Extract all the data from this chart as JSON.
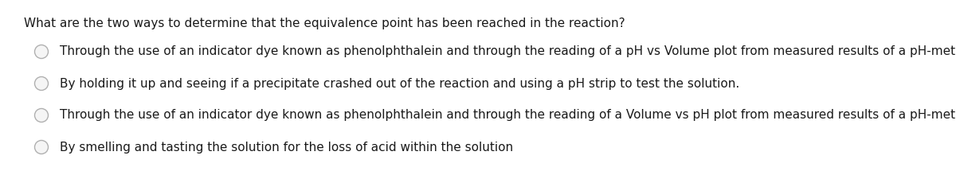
{
  "background_color": "#ffffff",
  "question": "What are the two ways to determine that the equivalence point has been reached in the reaction?",
  "options": [
    "Through the use of an indicator dye known as phenolphthalein and through the reading of a pH vs Volume plot from measured results of a pH-meter.",
    "By holding it up and seeing if a precipitate crashed out of the reaction and using a pH strip to test the solution.",
    "Through the use of an indicator dye known as phenolphthalein and through the reading of a Volume vs pH plot from measured results of a pH-meter.",
    "By smelling and tasting the solution for the loss of acid within the solution"
  ],
  "question_fontsize": 11.0,
  "option_fontsize": 11.0,
  "text_color": "#1a1a1a",
  "circle_color": "#b0b0b0",
  "circle_facecolor": "#f5f5f5"
}
